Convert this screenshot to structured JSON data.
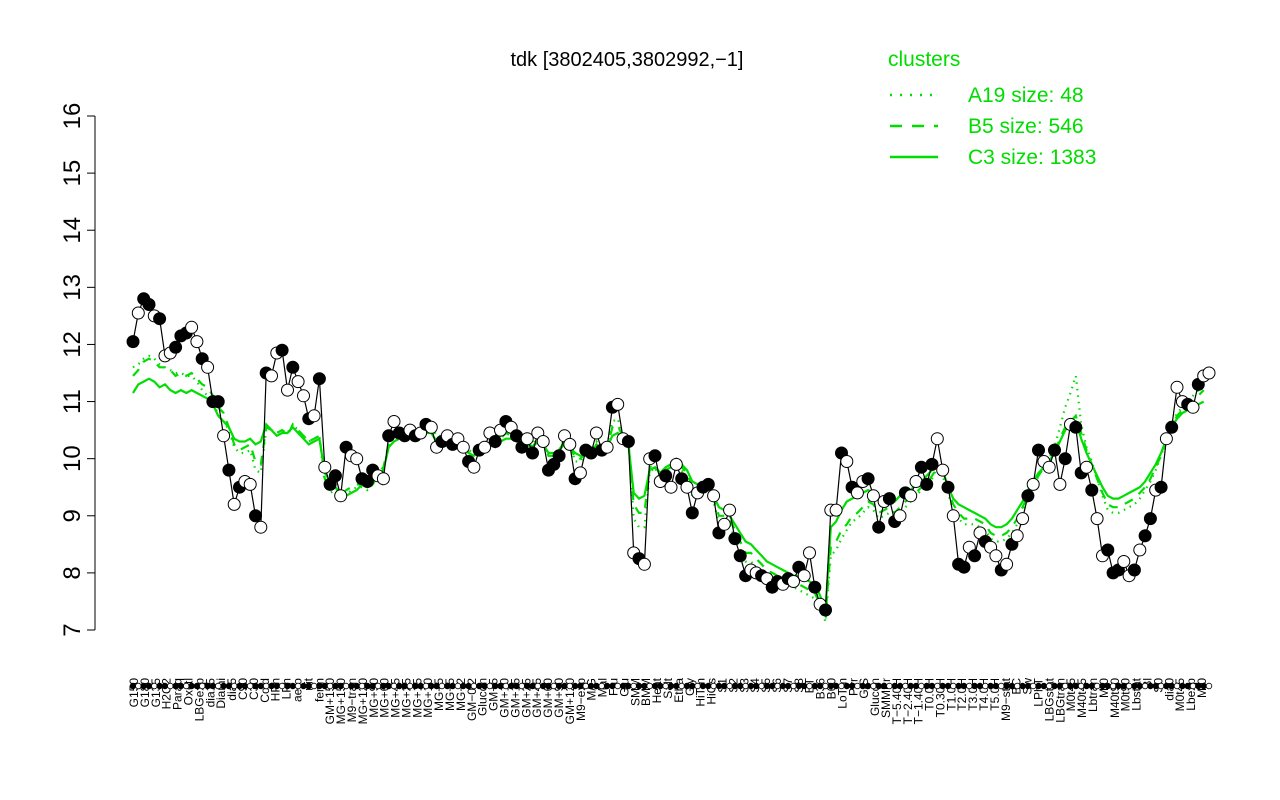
{
  "chart_data": {
    "type": "line",
    "title": "tdk [3802405,3802992,−1]",
    "xlabel": "",
    "ylabel": "",
    "ylim": [
      7,
      16
    ],
    "y_ticks": [
      7,
      8,
      9,
      10,
      11,
      12,
      13,
      14,
      15,
      16
    ],
    "grid": false,
    "legend_position": "top-right",
    "colors": {
      "accent": "#00dd00",
      "line": "#000000",
      "point_fill_dark": "#000000",
      "point_fill_light": "#ffffff"
    },
    "legend": {
      "title": "clusters",
      "entries": [
        {
          "label": "A19 size: 48",
          "style": "dotted"
        },
        {
          "label": "B5 size: 546",
          "style": "dashed"
        },
        {
          "label": "C3 size: 1383",
          "style": "solid"
        }
      ]
    },
    "tick_labels": [
      "G150",
      "G180",
      "G135",
      "H2O2",
      "Paraq",
      "Oxctl",
      "LBGexp",
      "dia15",
      "Diami",
      "dia5",
      "C90",
      "C30",
      "Cold",
      "HPh",
      "LPh",
      "aero",
      "nit",
      "ferm",
      "GM+150",
      "MG+150",
      "M9−tran",
      "MG+120",
      "MG+90",
      "MG+60",
      "MG+45",
      "MG+25",
      "MG+15",
      "MG+10",
      "MG+5",
      "MG−5",
      "MG−2",
      "GM−0.2",
      "Glucon",
      "GM+5",
      "GM+10",
      "GM+15",
      "GM+25",
      "GM+45",
      "GM+60",
      "GM+90",
      "GM+120",
      "M9−exp",
      "M/G",
      "Mal",
      "Fru",
      "Glu",
      "SMM",
      "BMM",
      "Heat",
      "Salt",
      "Etha",
      "Gly",
      "HiTm",
      "HiOs",
      "S1",
      "S2",
      "S3",
      "S4",
      "S5",
      "S6",
      "S7",
      "S8",
      "BT",
      "B36",
      "B60",
      "LoTm",
      "Pyr",
      "G/S",
      "Glucon",
      "SMMPr",
      "T−5.40H",
      "T−2.40H",
      "T−1.40H",
      "T0.0H",
      "T0.30H",
      "T1.0H",
      "T2.0H",
      "T3.0H",
      "T4.0H",
      "T5.0H",
      "M9−stat",
      "BC",
      "Sw",
      "LPhT",
      "LBGstat",
      "LBGtran",
      "M0t45",
      "M40t45",
      "Lbtran",
      "Mt0",
      "M40t90",
      "M0t90",
      "Lbstat",
      "Bl",
      "S0",
      "dia0",
      "M0t45",
      "Lbexp",
      "Mt0"
    ],
    "black_series": [
      12.05,
      12.55,
      12.8,
      12.7,
      12.5,
      12.45,
      11.8,
      11.85,
      11.95,
      12.15,
      12.2,
      12.3,
      12.05,
      11.75,
      11.6,
      11.0,
      11.0,
      10.4,
      9.8,
      9.2,
      9.5,
      9.6,
      9.55,
      9.0,
      8.8,
      11.5,
      11.45,
      11.85,
      11.9,
      11.2,
      11.6,
      11.35,
      11.1,
      10.7,
      10.75,
      11.4,
      9.85,
      9.55,
      9.7,
      9.35,
      10.2,
      10.05,
      10.0,
      9.65,
      9.6,
      9.8,
      9.7,
      9.65,
      10.4,
      10.65,
      10.45,
      10.4,
      10.5,
      10.4,
      10.45,
      10.6,
      10.55,
      10.2,
      10.3,
      10.4,
      10.25,
      10.35,
      10.2,
      9.95,
      9.85,
      10.15,
      10.2,
      10.45,
      10.3,
      10.5,
      10.65,
      10.55,
      10.4,
      10.2,
      10.35,
      10.1,
      10.45,
      10.3,
      9.8,
      9.9,
      10.05,
      10.4,
      10.25,
      9.65,
      9.75,
      10.15,
      10.1,
      10.45,
      10.15,
      10.2,
      10.9,
      10.95,
      10.35,
      10.3,
      8.35,
      8.25,
      8.15,
      10.0,
      10.05,
      9.6,
      9.7,
      9.5,
      9.9,
      9.65,
      9.5,
      9.05,
      9.4,
      9.5,
      9.55,
      9.35,
      8.7,
      8.85,
      9.1,
      8.6,
      8.3,
      7.95,
      8.05,
      8.0,
      7.95,
      7.9,
      7.75,
      7.85,
      7.8,
      7.9,
      7.85,
      8.1,
      7.95,
      8.35,
      7.75,
      7.45,
      7.35,
      9.1,
      9.1,
      10.1,
      9.95,
      9.5,
      9.4,
      9.6,
      9.65,
      9.35,
      8.8,
      9.25,
      9.3,
      8.9,
      9.0,
      9.4,
      9.35,
      9.6,
      9.85,
      9.55,
      9.9,
      10.35,
      9.8,
      9.5,
      9.0,
      8.15,
      8.1,
      8.45,
      8.3,
      8.7,
      8.55,
      8.45,
      8.3,
      8.05,
      8.15,
      8.5,
      8.65,
      8.95,
      9.35,
      9.55,
      10.15,
      9.95,
      9.85,
      10.15,
      9.55,
      10.0,
      10.6,
      10.55,
      9.75,
      9.85,
      9.45,
      8.95,
      8.3,
      8.4,
      8.0,
      8.05,
      8.2,
      7.95,
      8.05,
      8.4,
      8.65,
      8.95,
      9.45,
      9.5,
      10.35,
      10.55,
      11.25,
      11.0,
      10.95,
      10.9,
      11.3,
      11.45,
      11.5
    ],
    "c3_series": [
      11.15,
      11.3,
      11.35,
      11.4,
      11.35,
      11.25,
      11.3,
      11.2,
      11.15,
      11.2,
      11.15,
      11.2,
      11.15,
      11.1,
      11.05,
      10.95,
      10.75,
      10.65,
      10.55,
      10.35,
      10.3,
      10.3,
      10.35,
      10.25,
      10.3,
      10.6,
      10.5,
      10.4,
      10.45,
      10.45,
      10.55,
      10.45,
      10.35,
      10.25,
      10.3,
      10.35,
      9.75,
      9.6,
      9.5,
      9.4,
      9.35,
      9.4,
      9.45,
      9.55,
      9.5,
      9.55,
      9.7,
      9.8,
      10.2,
      10.3,
      10.35,
      10.35,
      10.4,
      10.4,
      10.4,
      10.45,
      10.45,
      10.3,
      10.25,
      10.3,
      10.25,
      10.25,
      10.2,
      10.1,
      10.05,
      10.15,
      10.15,
      10.25,
      10.2,
      10.3,
      10.35,
      10.35,
      10.3,
      10.25,
      10.25,
      10.2,
      10.3,
      10.25,
      10.1,
      10.1,
      10.15,
      10.25,
      10.2,
      10.1,
      10.05,
      10.1,
      10.1,
      10.2,
      10.15,
      10.2,
      10.4,
      10.45,
      10.3,
      10.25,
      9.4,
      9.3,
      9.35,
      9.8,
      9.85,
      9.75,
      9.85,
      9.9,
      10.0,
      9.9,
      9.8,
      9.6,
      9.55,
      9.5,
      9.45,
      9.35,
      9.15,
      9.1,
      9.0,
      8.85,
      8.7,
      8.55,
      8.5,
      8.4,
      8.3,
      8.2,
      8.15,
      8.1,
      8.05,
      8.0,
      7.95,
      7.95,
      7.9,
      7.85,
      7.8,
      7.6,
      7.35,
      8.8,
      8.9,
      9.1,
      9.25,
      9.3,
      9.35,
      9.4,
      9.45,
      9.4,
      9.3,
      9.3,
      9.3,
      9.25,
      9.35,
      9.4,
      9.45,
      9.55,
      9.6,
      9.7,
      9.8,
      9.85,
      9.8,
      9.5,
      9.3,
      9.2,
      9.15,
      9.1,
      9.05,
      9.0,
      8.95,
      8.85,
      8.8,
      8.8,
      8.85,
      8.95,
      9.1,
      9.25,
      9.45,
      9.6,
      9.75,
      9.85,
      9.95,
      10.1,
      10.3,
      10.5,
      10.6,
      10.65,
      10.35,
      10.1,
      9.9,
      9.7,
      9.5,
      9.35,
      9.3,
      9.3,
      9.35,
      9.4,
      9.45,
      9.5,
      9.6,
      9.75,
      9.9,
      10.1,
      10.35,
      10.55,
      10.7,
      10.8,
      10.85,
      10.9,
      10.95,
      11.0
    ],
    "b5_series": [
      11.45,
      11.55,
      11.7,
      11.75,
      11.7,
      11.6,
      11.6,
      11.55,
      11.45,
      11.5,
      11.45,
      11.5,
      11.4,
      11.3,
      11.25,
      11.1,
      10.9,
      10.8,
      10.55,
      10.25,
      10.15,
      10.2,
      10.25,
      9.95,
      9.9,
      10.55,
      10.5,
      10.45,
      10.5,
      10.4,
      10.6,
      10.5,
      10.4,
      10.3,
      10.35,
      10.4,
      9.65,
      9.45,
      9.5,
      9.35,
      9.45,
      9.5,
      9.55,
      9.55,
      9.5,
      9.6,
      9.75,
      9.85,
      10.25,
      10.4,
      10.4,
      10.4,
      10.45,
      10.45,
      10.45,
      10.5,
      10.5,
      10.35,
      10.35,
      10.4,
      10.3,
      10.3,
      10.25,
      10.1,
      10.05,
      10.15,
      10.2,
      10.3,
      10.25,
      10.35,
      10.45,
      10.4,
      10.35,
      10.25,
      10.3,
      10.2,
      10.35,
      10.3,
      10.05,
      10.05,
      10.15,
      10.3,
      10.25,
      10.0,
      10.0,
      10.1,
      10.1,
      10.25,
      10.15,
      10.2,
      10.55,
      10.6,
      10.35,
      10.3,
      9.2,
      9.05,
      9.05,
      9.85,
      9.9,
      9.7,
      9.8,
      9.85,
      9.95,
      9.85,
      9.75,
      9.5,
      9.5,
      9.5,
      9.45,
      9.3,
      9.0,
      9.0,
      8.95,
      8.75,
      8.55,
      8.35,
      8.35,
      8.25,
      8.15,
      8.05,
      8.0,
      7.95,
      7.9,
      7.85,
      7.85,
      7.8,
      7.75,
      7.7,
      7.65,
      7.45,
      7.25,
      8.45,
      8.55,
      8.75,
      8.85,
      9.0,
      9.05,
      9.15,
      9.25,
      9.2,
      9.05,
      9.1,
      9.15,
      9.05,
      9.15,
      9.25,
      9.3,
      9.4,
      9.5,
      9.55,
      9.7,
      9.85,
      9.75,
      9.45,
      9.2,
      9.05,
      8.95,
      8.95,
      8.95,
      8.9,
      8.85,
      8.7,
      8.65,
      8.65,
      8.7,
      8.8,
      8.95,
      9.15,
      9.35,
      9.55,
      9.7,
      9.85,
      9.95,
      10.1,
      10.35,
      10.55,
      10.65,
      10.75,
      10.45,
      10.15,
      9.9,
      9.65,
      9.4,
      9.2,
      9.15,
      9.15,
      9.2,
      9.25,
      9.3,
      9.4,
      9.5,
      9.65,
      9.85,
      10.05,
      10.35,
      10.55,
      10.75,
      10.85,
      10.95,
      11.0,
      11.1,
      11.2
    ],
    "a19_series": [
      11.6,
      11.65,
      11.75,
      11.8,
      11.75,
      11.65,
      11.6,
      11.55,
      11.5,
      11.5,
      11.45,
      11.45,
      11.35,
      11.2,
      11.1,
      10.95,
      10.8,
      10.65,
      10.5,
      10.2,
      10.1,
      10.1,
      10.15,
      9.8,
      9.75,
      10.5,
      10.5,
      10.45,
      10.5,
      10.45,
      10.6,
      10.5,
      10.4,
      10.3,
      10.35,
      10.4,
      9.55,
      9.4,
      9.45,
      9.3,
      9.35,
      9.45,
      9.5,
      9.5,
      9.45,
      9.55,
      9.7,
      9.8,
      10.25,
      10.45,
      10.45,
      10.45,
      10.5,
      10.5,
      10.5,
      10.55,
      10.55,
      10.4,
      10.4,
      10.45,
      10.35,
      10.35,
      10.3,
      10.15,
      10.1,
      10.2,
      10.25,
      10.35,
      10.3,
      10.4,
      10.5,
      10.45,
      10.4,
      10.3,
      10.35,
      10.25,
      10.4,
      10.35,
      10.05,
      10.05,
      10.15,
      10.35,
      10.3,
      9.95,
      9.95,
      10.1,
      10.1,
      10.3,
      10.2,
      10.25,
      10.65,
      10.7,
      10.4,
      10.35,
      8.95,
      8.8,
      8.8,
      9.75,
      9.85,
      9.6,
      9.75,
      9.8,
      9.9,
      9.8,
      9.65,
      9.35,
      9.4,
      9.45,
      9.4,
      9.25,
      8.85,
      8.85,
      8.85,
      8.6,
      8.4,
      8.2,
      8.2,
      8.1,
      8.0,
      7.95,
      7.9,
      7.85,
      7.8,
      7.8,
      7.75,
      7.7,
      7.65,
      7.6,
      7.55,
      7.35,
      7.15,
      8.3,
      8.4,
      8.6,
      8.75,
      8.9,
      8.95,
      9.05,
      9.15,
      9.1,
      8.95,
      9.0,
      9.05,
      8.95,
      9.05,
      9.15,
      9.25,
      9.35,
      9.45,
      9.5,
      9.65,
      9.85,
      9.7,
      9.4,
      9.1,
      8.95,
      8.85,
      8.85,
      8.85,
      8.8,
      8.75,
      8.6,
      8.55,
      8.55,
      8.6,
      8.7,
      8.85,
      9.05,
      9.3,
      9.5,
      9.7,
      9.85,
      10.0,
      10.2,
      10.55,
      10.9,
      11.15,
      11.45,
      10.6,
      10.2,
      9.95,
      9.65,
      9.35,
      9.1,
      9.05,
      9.05,
      9.1,
      9.15,
      9.2,
      9.3,
      9.45,
      9.6,
      9.8,
      10.05,
      10.35,
      10.6,
      10.8,
      10.9,
      11.0,
      11.1,
      11.2,
      11.3
    ]
  }
}
